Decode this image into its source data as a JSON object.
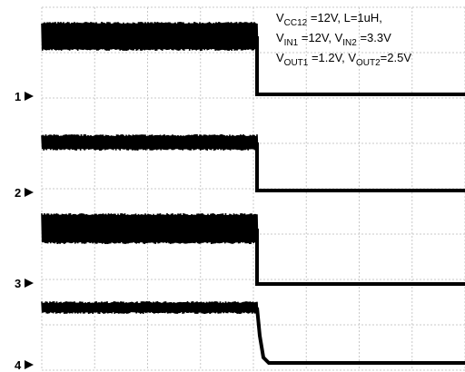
{
  "annotation": {
    "lines": [
      [
        {
          "text": "V",
          "sub": false
        },
        {
          "text": "CC12",
          "sub": true
        },
        {
          "text": " =12V, L=1uH,",
          "sub": false
        }
      ],
      [
        {
          "text": "V",
          "sub": false
        },
        {
          "text": "IN1",
          "sub": true
        },
        {
          "text": " =12V, V",
          "sub": false
        },
        {
          "text": "IN2",
          "sub": true
        },
        {
          "text": " =3.3V",
          "sub": false
        }
      ],
      [
        {
          "text": "V",
          "sub": false
        },
        {
          "text": "OUT1",
          "sub": true
        },
        {
          "text": " =1.2V, V",
          "sub": false
        },
        {
          "text": "OUT2",
          "sub": true
        },
        {
          "text": "=2.5V",
          "sub": false
        }
      ]
    ]
  },
  "channels": [
    "1",
    "2",
    "3",
    "4"
  ]
}
